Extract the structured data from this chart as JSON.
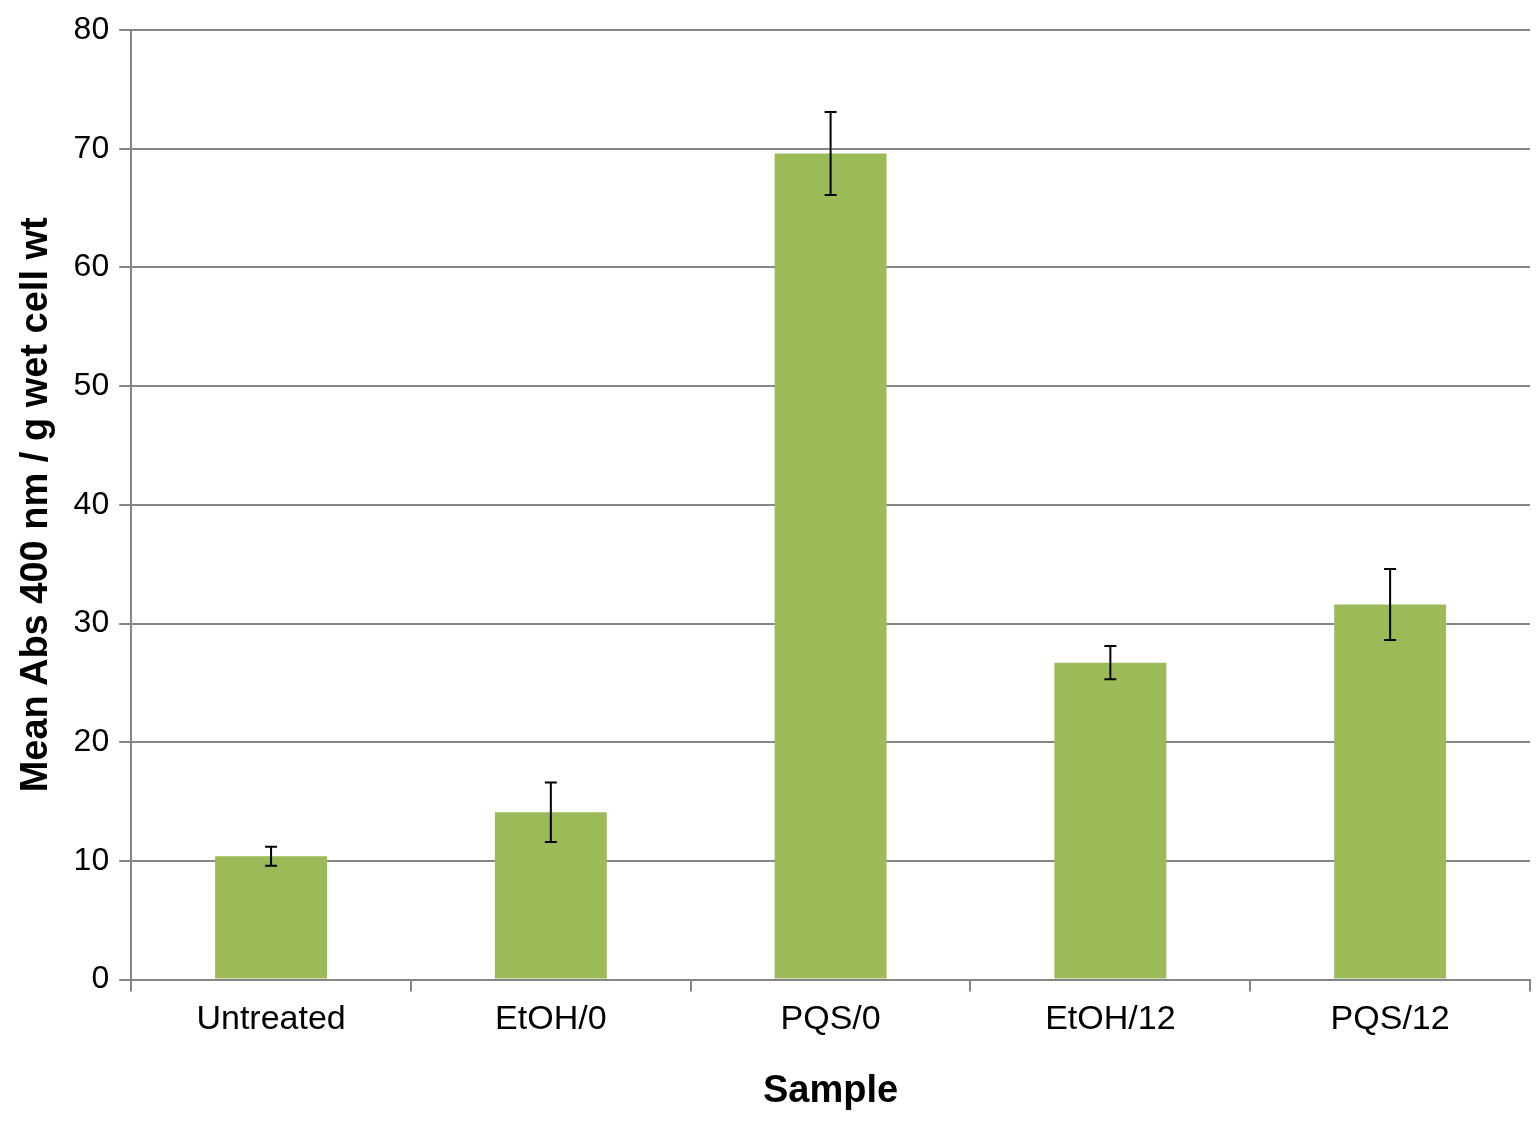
{
  "chart_data": {
    "type": "bar",
    "xlabel": "Sample",
    "ylabel": "Mean Abs 400 nm / g wet cell wt",
    "categories": [
      "Untreated",
      "EtOH/0",
      "PQS/0",
      "EtOH/12",
      "PQS/12"
    ],
    "values": [
      10.4,
      14.1,
      69.6,
      26.7,
      31.6
    ],
    "errors": [
      0.8,
      2.5,
      3.5,
      1.4,
      3.0
    ],
    "color": "#9bbb59",
    "ylim": [
      0,
      80
    ],
    "yticks": [
      0,
      10,
      20,
      30,
      40,
      50,
      60,
      70,
      80
    ],
    "grid": "y",
    "legend": false
  }
}
